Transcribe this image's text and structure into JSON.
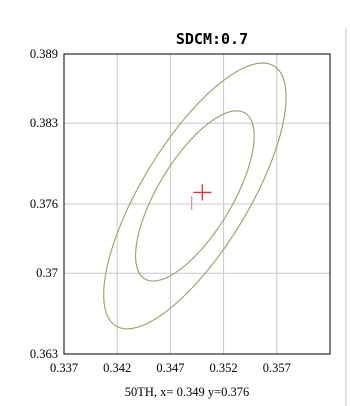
{
  "chart_data": {
    "type": "scatter",
    "title": "SDCM:0.7",
    "xlabel": "",
    "ylabel": "",
    "xlim": [
      0.337,
      0.362
    ],
    "ylim": [
      0.363,
      0.389
    ],
    "x_ticks": [
      0.337,
      0.342,
      0.347,
      0.352,
      0.357
    ],
    "x_tick_labels": [
      "0.337",
      "0.342",
      "0.347",
      "0.352",
      "0.357"
    ],
    "y_ticks": [
      0.363,
      0.37,
      0.376,
      0.383,
      0.389
    ],
    "y_tick_labels": [
      "0.363",
      "0.37",
      "0.376",
      "0.383",
      "0.389"
    ],
    "grid": true,
    "ellipses": [
      {
        "cx": 0.3493,
        "cy": 0.3767,
        "semi_major": 0.0135,
        "semi_minor": 0.0049,
        "angle_deg": 56
      },
      {
        "cx": 0.3493,
        "cy": 0.3767,
        "semi_major": 0.0086,
        "semi_minor": 0.0034,
        "angle_deg": 56
      }
    ],
    "target_point": {
      "x": 0.35,
      "y": 0.377
    },
    "measured_point": {
      "x": 0.349,
      "y": 0.376
    },
    "readout": "50TH, x= 0.349 y=0.376",
    "colors": {
      "ellipse": "#a8a07a",
      "target": "#e03030",
      "measured": "#e08a8a",
      "grid": "#c8c8c8",
      "axes": "#000000"
    }
  }
}
